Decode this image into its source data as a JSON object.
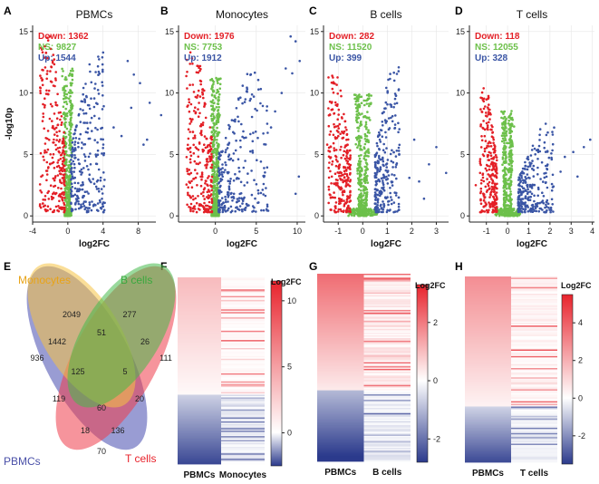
{
  "colors": {
    "down": "#e31f26",
    "ns": "#6cc04a",
    "up": "#3a55a5",
    "axis": "#222222",
    "grid": "#e6e6e6",
    "hm_red": "#e8232c",
    "hm_blue": "#2b3a8c"
  },
  "chart_data": [
    {
      "type": "scatter",
      "panel": "A",
      "title": "PBMCs",
      "xlabel": "log2FC",
      "ylabel": "-log10p",
      "xlim": [
        -4,
        10
      ],
      "ylim": [
        -0.5,
        15.5
      ],
      "xticks": [
        -4,
        0,
        4,
        8
      ],
      "yticks": [
        0,
        5,
        10,
        15
      ],
      "counts": {
        "down": "Down: 1362",
        "ns": "NS: 9827",
        "up": "Up: 1544"
      },
      "cloud": {
        "down_x": [
          -3.2,
          -0.35
        ],
        "up_x": [
          0.35,
          4.2
        ],
        "down_ymax": 14.3,
        "up_ymax": 13.2
      },
      "outliers": [
        [
          6.8,
          12.6
        ],
        [
          7.5,
          11.5
        ],
        [
          8.2,
          10.8
        ],
        [
          9.3,
          9.2
        ],
        [
          7.2,
          8.8
        ],
        [
          10.6,
          8.2
        ],
        [
          9.0,
          6.2
        ],
        [
          8.6,
          5.8
        ],
        [
          5.2,
          7.2
        ],
        [
          6.1,
          6.5
        ]
      ]
    },
    {
      "type": "scatter",
      "panel": "B",
      "title": "Monocytes",
      "xlabel": "log2FC",
      "ylabel": "",
      "xlim": [
        -4.5,
        11
      ],
      "ylim": [
        -0.5,
        15.5
      ],
      "xticks": [
        0,
        5,
        10
      ],
      "yticks": [
        0,
        5,
        10,
        15
      ],
      "counts": {
        "down": "Down: 1976",
        "ns": "NS: 7753",
        "up": "Up: 1912"
      },
      "cloud": {
        "down_x": [
          -3.6,
          -0.4
        ],
        "up_x": [
          0.4,
          6.5
        ],
        "down_ymax": 13.2,
        "up_ymax": 11.8
      },
      "outliers": [
        [
          9.2,
          14.6
        ],
        [
          9.8,
          14.2
        ],
        [
          8.6,
          12.0
        ],
        [
          9.4,
          11.6
        ],
        [
          10.3,
          12.6
        ],
        [
          8.1,
          10.0
        ],
        [
          7.3,
          8.5
        ],
        [
          10.2,
          3.2
        ],
        [
          9.8,
          1.8
        ],
        [
          6.8,
          7.2
        ]
      ]
    },
    {
      "type": "scatter",
      "panel": "C",
      "title": "B cells",
      "xlabel": "log2FC",
      "ylabel": "",
      "xlim": [
        -1.6,
        3.5
      ],
      "ylim": [
        -0.5,
        15.5
      ],
      "xticks": [
        -1,
        0,
        1,
        2,
        3
      ],
      "yticks": [
        0,
        5,
        10,
        15
      ],
      "counts": {
        "down": "Down: 282",
        "ns": "NS: 11520",
        "up": "Up: 399"
      },
      "cloud": {
        "down_x": [
          -1.4,
          -0.5
        ],
        "up_x": [
          0.5,
          1.5
        ],
        "down_ymax": 11.2,
        "up_ymax": 11.8
      },
      "outliers": [
        [
          2.1,
          6.2
        ],
        [
          2.7,
          4.2
        ],
        [
          3.4,
          3.5
        ],
        [
          2.3,
          2.8
        ],
        [
          1.9,
          3.1
        ],
        [
          3.0,
          5.6
        ],
        [
          -1.45,
          5.8
        ],
        [
          2.5,
          1.4
        ]
      ]
    },
    {
      "type": "scatter",
      "panel": "D",
      "title": "T cells",
      "xlabel": "log2FC",
      "ylabel": "",
      "xlim": [
        -1.8,
        4.1
      ],
      "ylim": [
        -0.5,
        15.5
      ],
      "xticks": [
        -1,
        0,
        1,
        2,
        3,
        4
      ],
      "yticks": [
        0,
        5,
        10,
        15
      ],
      "counts": {
        "down": "Down: 118",
        "ns": "NS: 12055",
        "up": "Up: 328"
      },
      "cloud": {
        "down_x": [
          -1.3,
          -0.5
        ],
        "up_x": [
          0.5,
          2.2
        ],
        "down_ymax": 10.2,
        "up_ymax": 7.0
      },
      "outliers": [
        [
          3.1,
          5.2
        ],
        [
          3.6,
          5.6
        ],
        [
          2.7,
          4.8
        ],
        [
          3.9,
          6.2
        ],
        [
          2.5,
          3.6
        ],
        [
          3.3,
          3.2
        ],
        [
          -1.5,
          2.5
        ],
        [
          1.8,
          7.5
        ]
      ]
    },
    {
      "type": "venn",
      "panel": "E",
      "sets": [
        "Monocytes",
        "B cells",
        "T cells",
        "PBMCs"
      ],
      "regions": [
        {
          "id": "M",
          "value": "2049"
        },
        {
          "id": "B",
          "value": "277"
        },
        {
          "id": "T",
          "value": "111"
        },
        {
          "id": "P",
          "value": "936"
        },
        {
          "id": "MB",
          "value": "51"
        },
        {
          "id": "PM",
          "value": "1442"
        },
        {
          "id": "BT",
          "value": "26"
        },
        {
          "id": "PMB",
          "value": "125"
        },
        {
          "id": "MBT",
          "value": "5"
        },
        {
          "id": "PMBT",
          "value": "60"
        },
        {
          "id": "PB",
          "value": "119"
        },
        {
          "id": "MT",
          "value": "20"
        },
        {
          "id": "PBT",
          "value": "18"
        },
        {
          "id": "PMT",
          "value": "136"
        },
        {
          "id": "PT",
          "value": "70"
        }
      ]
    },
    {
      "type": "heatmap",
      "panel": "F",
      "columns": [
        "PBMCs",
        "Monocytes"
      ],
      "legend_title": "Log2FC",
      "scale": {
        "min": -2.5,
        "max": 11.5,
        "ticks": [
          0,
          5,
          10
        ],
        "mid": 0
      },
      "up_fraction": 0.63,
      "pbmc_up": 3.6,
      "pbmc_down": -0.6
    },
    {
      "type": "heatmap",
      "panel": "G",
      "columns": [
        "PBMCs",
        "B cells"
      ],
      "legend_title": "Log2FC",
      "scale": {
        "min": -2.8,
        "max": 3.3,
        "ticks": [
          -2,
          0,
          2
        ],
        "mid": 0
      },
      "up_fraction": 0.62,
      "pbmc_up": 2.1,
      "pbmc_down": -1.0
    },
    {
      "type": "heatmap",
      "panel": "H",
      "columns": [
        "PBMCs",
        "T cells"
      ],
      "legend_title": "Log2FC",
      "scale": {
        "min": -3.5,
        "max": 5.5,
        "ticks": [
          -2,
          0,
          2,
          4
        ],
        "mid": 0
      },
      "up_fraction": 0.7,
      "pbmc_up": 2.8,
      "pbmc_down": -0.8
    }
  ]
}
